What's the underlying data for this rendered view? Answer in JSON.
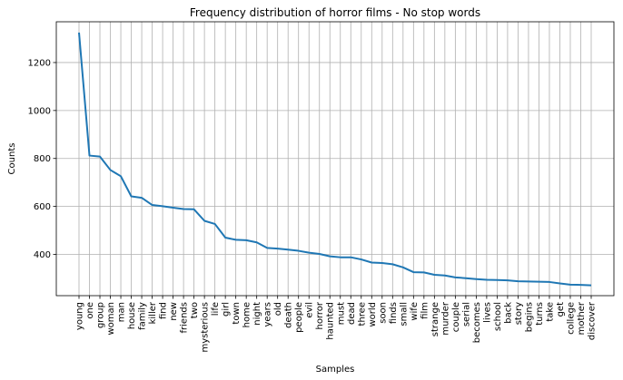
{
  "chart_data": {
    "type": "line",
    "title": "Frequency distribution of horror films - No stop words",
    "xlabel": "Samples",
    "ylabel": "Counts",
    "grid": true,
    "categories": [
      "young",
      "one",
      "group",
      "woman",
      "man",
      "house",
      "family",
      "killer",
      "find",
      "new",
      "friends",
      "two",
      "mysterious",
      "life",
      "girl",
      "town",
      "home",
      "night",
      "years",
      "old",
      "death",
      "people",
      "evil",
      "horror",
      "haunted",
      "must",
      "dead",
      "three",
      "world",
      "soon",
      "finds",
      "small",
      "wife",
      "film",
      "strange",
      "murder",
      "couple",
      "serial",
      "becomes",
      "lives",
      "school",
      "back",
      "story",
      "begins",
      "turns",
      "take",
      "get",
      "college",
      "mother",
      "discover"
    ],
    "values": [
      1325,
      812,
      808,
      752,
      726,
      642,
      636,
      606,
      601,
      595,
      589,
      588,
      540,
      527,
      470,
      461,
      459,
      450,
      427,
      424,
      420,
      415,
      407,
      402,
      392,
      388,
      388,
      379,
      366,
      364,
      359,
      346,
      326,
      325,
      315,
      312,
      304,
      301,
      297,
      294,
      293,
      292,
      288,
      287,
      286,
      285,
      279,
      274,
      273,
      271
    ],
    "ylim": [
      228,
      1370
    ],
    "yticks": [
      400,
      600,
      800,
      1000,
      1200
    ],
    "line_color": "#1f77b4"
  }
}
